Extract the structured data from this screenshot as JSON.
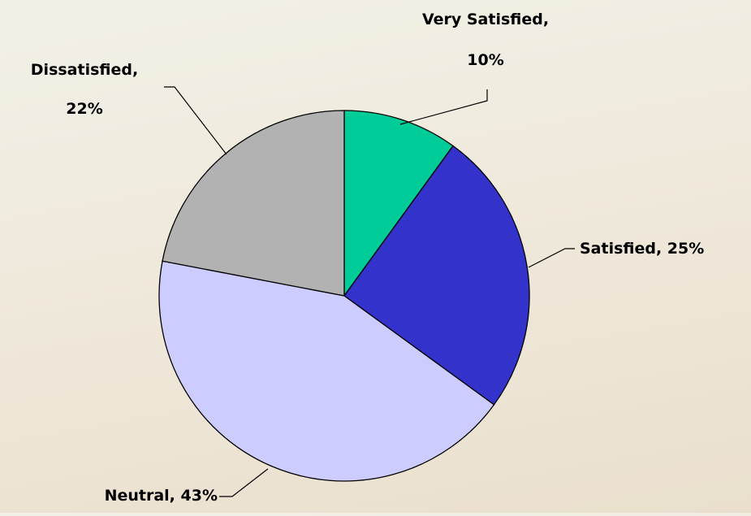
{
  "chart_data": {
    "type": "pie",
    "title": "",
    "slices": [
      {
        "label": "Very Satisfied",
        "value": 10,
        "color": "#00cc99",
        "label_lines": [
          "Very Satisfied,",
          "10%"
        ]
      },
      {
        "label": "Satisfied",
        "value": 25,
        "color": "#3333cc",
        "label_lines": [
          "Satisfied, 25%"
        ]
      },
      {
        "label": "Neutral",
        "value": 43,
        "color": "#ccccff",
        "label_lines": [
          "Neutral, 43%"
        ]
      },
      {
        "label": "Dissatisfied",
        "value": 22,
        "color": "#b2b2b2",
        "label_lines": [
          "Dissatisfied,",
          "22%"
        ]
      }
    ],
    "start_angle_deg": 0,
    "direction": "clockwise",
    "legend": "none",
    "outline_color": "#000000"
  }
}
